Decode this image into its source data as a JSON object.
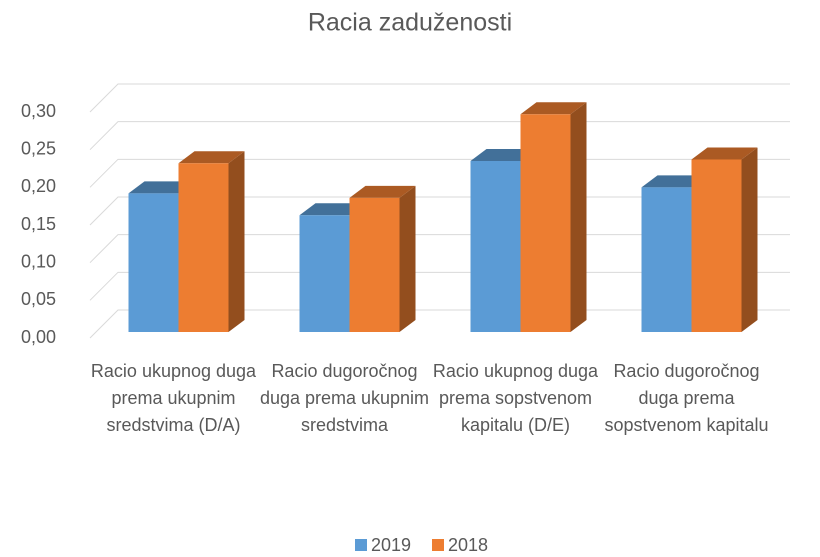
{
  "chart_data": {
    "type": "bar3d",
    "title": "Racia zaduženosti",
    "categories": [
      "Racio ukupnog duga prema ukupnim sredstvima (D/A)",
      "Racio dugoročnog duga prema ukupnim sredstvima",
      "Racio ukupnog duga prema sopstvenom kapitalu (D/E)",
      "Racio dugoročnog duga prema sopstvenom kapitalu"
    ],
    "series": [
      {
        "name": "2019",
        "color": "#5b9bd5",
        "values": [
          0.184,
          0.155,
          0.227,
          0.192
        ]
      },
      {
        "name": "2018",
        "color": "#ed7d31",
        "values": [
          0.224,
          0.178,
          0.289,
          0.229
        ]
      }
    ],
    "ylim": [
      0,
      0.3
    ],
    "yticks": [
      {
        "value": 0,
        "label": "0,00"
      },
      {
        "value": 0.05,
        "label": "0,05"
      },
      {
        "value": 0.1,
        "label": "0,10"
      },
      {
        "value": 0.15,
        "label": "0,15"
      },
      {
        "value": 0.2,
        "label": "0,20"
      },
      {
        "value": 0.25,
        "label": "0,25"
      },
      {
        "value": 0.3,
        "label": "0,30"
      }
    ],
    "grid": true,
    "legend": "bottom"
  }
}
